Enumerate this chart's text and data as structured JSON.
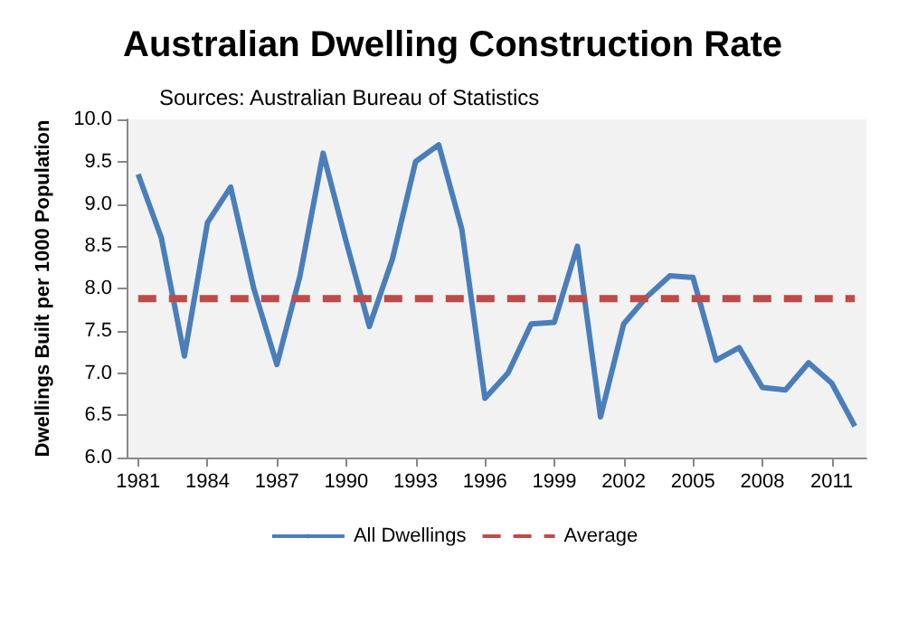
{
  "chart_data": {
    "type": "line",
    "title": "Australian Dwelling Construction Rate",
    "subtitle": "Sources: Australian Bureau of Statistics",
    "ylabel": "Dwellings Built per 1000 Population",
    "categories": [
      "1981",
      null,
      null,
      "1984",
      null,
      null,
      "1987",
      null,
      null,
      "1990",
      null,
      null,
      "1993",
      null,
      null,
      "1996",
      null,
      null,
      "1999",
      null,
      null,
      "2002",
      null,
      null,
      "2005",
      null,
      null,
      "2008",
      null,
      null,
      "2011",
      null
    ],
    "series": [
      {
        "name": "All Dwellings",
        "color": "#4a7ebb",
        "line_style": "solid",
        "values": [
          9.35,
          8.6,
          7.2,
          8.78,
          9.2,
          8.0,
          7.1,
          8.15,
          9.6,
          8.55,
          7.55,
          8.35,
          9.5,
          9.7,
          8.7,
          6.7,
          7.0,
          7.58,
          7.6,
          8.5,
          6.48,
          7.58,
          7.9,
          8.15,
          8.13,
          7.15,
          7.3,
          6.83,
          6.8,
          7.12,
          6.88,
          6.37
        ]
      },
      {
        "name": "Average",
        "color": "#be4b48",
        "line_style": "dashed",
        "values": [
          7.88,
          7.88,
          7.88,
          7.88,
          7.88,
          7.88,
          7.88,
          7.88,
          7.88,
          7.88,
          7.88,
          7.88,
          7.88,
          7.88,
          7.88,
          7.88,
          7.88,
          7.88,
          7.88,
          7.88,
          7.88,
          7.88,
          7.88,
          7.88,
          7.88,
          7.88,
          7.88,
          7.88,
          7.88,
          7.88,
          7.88,
          7.88
        ]
      }
    ],
    "ylim": [
      6,
      10
    ],
    "yticks": [
      {
        "value": 6,
        "label": "6.0"
      },
      {
        "value": 6.5,
        "label": "6.5"
      },
      {
        "value": 7,
        "label": "7.0"
      },
      {
        "value": 7.5,
        "label": "7.5"
      },
      {
        "value": 8,
        "label": "8.0"
      },
      {
        "value": 8.5,
        "label": "8.5"
      },
      {
        "value": 9,
        "label": "9.0"
      },
      {
        "value": 9.5,
        "label": "9.5"
      },
      {
        "value": 10,
        "label": "10.0"
      }
    ],
    "grid": false,
    "legend": "bottom",
    "marker": "none"
  }
}
